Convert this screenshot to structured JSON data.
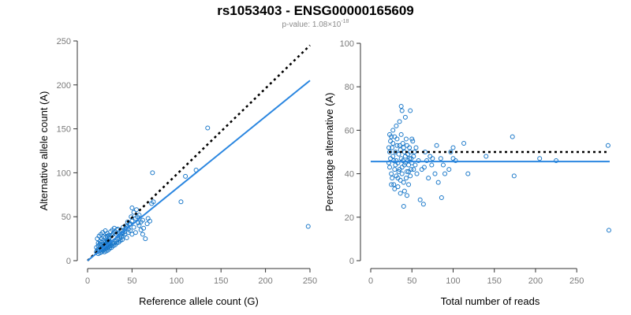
{
  "header": {
    "title": "rs1053403 - ENSG00000165609",
    "pvalue_prefix": "p-value: 1.08×10",
    "pvalue_exponent": "-18"
  },
  "colors": {
    "points": "#1a78c9",
    "fit_line": "#2a86e0",
    "reference_line": "#000000"
  },
  "chart_data": [
    {
      "type": "scatter",
      "title": "",
      "xlabel": "Reference allele count (G)",
      "ylabel": "Alternative allele count (A)",
      "xlim": [
        0,
        250
      ],
      "ylim": [
        0,
        250
      ],
      "xticks": [
        0,
        50,
        100,
        150,
        200,
        250
      ],
      "yticks": [
        0,
        50,
        100,
        150,
        200,
        250
      ],
      "points": [
        [
          10,
          10
        ],
        [
          11,
          12
        ],
        [
          12,
          13
        ],
        [
          13,
          11
        ],
        [
          14,
          15
        ],
        [
          15,
          12
        ],
        [
          16,
          17
        ],
        [
          17,
          14
        ],
        [
          18,
          19
        ],
        [
          19,
          16
        ],
        [
          20,
          21
        ],
        [
          21,
          18
        ],
        [
          22,
          23
        ],
        [
          23,
          20
        ],
        [
          24,
          25
        ],
        [
          25,
          22
        ],
        [
          12,
          20
        ],
        [
          14,
          22
        ],
        [
          16,
          25
        ],
        [
          18,
          27
        ],
        [
          11,
          25
        ],
        [
          13,
          28
        ],
        [
          15,
          30
        ],
        [
          17,
          32
        ],
        [
          20,
          34
        ],
        [
          22,
          31
        ],
        [
          24,
          29
        ],
        [
          26,
          33
        ],
        [
          28,
          35
        ],
        [
          30,
          37
        ],
        [
          32,
          30
        ],
        [
          34,
          36
        ],
        [
          36,
          32
        ],
        [
          38,
          34
        ],
        [
          40,
          38
        ],
        [
          42,
          33
        ],
        [
          44,
          40
        ],
        [
          46,
          36
        ],
        [
          48,
          42
        ],
        [
          50,
          45
        ],
        [
          52,
          38
        ],
        [
          54,
          48
        ],
        [
          56,
          50
        ],
        [
          58,
          52
        ],
        [
          60,
          44
        ],
        [
          62,
          46
        ],
        [
          12,
          8
        ],
        [
          14,
          9
        ],
        [
          16,
          10
        ],
        [
          18,
          12
        ],
        [
          20,
          13
        ],
        [
          22,
          14
        ],
        [
          24,
          16
        ],
        [
          26,
          17
        ],
        [
          28,
          19
        ],
        [
          30,
          20
        ],
        [
          32,
          22
        ],
        [
          34,
          24
        ],
        [
          36,
          25
        ],
        [
          38,
          27
        ],
        [
          40,
          28
        ],
        [
          42,
          30
        ],
        [
          44,
          26
        ],
        [
          46,
          32
        ],
        [
          48,
          34
        ],
        [
          50,
          30
        ],
        [
          10,
          15
        ],
        [
          12,
          17
        ],
        [
          14,
          19
        ],
        [
          16,
          21
        ],
        [
          18,
          23
        ],
        [
          20,
          26
        ],
        [
          22,
          28
        ],
        [
          25,
          27
        ],
        [
          27,
          29
        ],
        [
          29,
          31
        ],
        [
          31,
          33
        ],
        [
          33,
          35
        ],
        [
          35,
          30
        ],
        [
          37,
          29
        ],
        [
          39,
          31
        ],
        [
          41,
          35
        ],
        [
          43,
          37
        ],
        [
          45,
          39
        ],
        [
          47,
          41
        ],
        [
          19,
          10
        ],
        [
          21,
          11
        ],
        [
          23,
          12
        ],
        [
          25,
          14
        ],
        [
          27,
          15
        ],
        [
          29,
          17
        ],
        [
          31,
          18
        ],
        [
          33,
          20
        ],
        [
          35,
          21
        ],
        [
          37,
          23
        ],
        [
          39,
          24
        ],
        [
          20,
          15
        ],
        [
          21,
          16
        ],
        [
          22,
          17
        ],
        [
          23,
          18
        ],
        [
          24,
          19
        ],
        [
          25,
          20
        ],
        [
          18,
          14
        ],
        [
          17,
          13
        ],
        [
          19,
          18
        ],
        [
          20,
          19
        ],
        [
          21,
          20
        ],
        [
          22,
          21
        ],
        [
          23,
          22
        ],
        [
          24,
          23
        ],
        [
          16,
          15
        ],
        [
          15,
          14
        ],
        [
          55,
          58
        ],
        [
          50,
          60
        ],
        [
          58,
          40
        ],
        [
          60,
          35
        ],
        [
          62,
          30
        ],
        [
          65,
          25
        ],
        [
          70,
          45
        ],
        [
          72,
          65
        ],
        [
          68,
          48
        ],
        [
          52,
          55
        ],
        [
          54,
          32
        ],
        [
          49,
          50
        ],
        [
          57,
          43
        ],
        [
          63,
          37
        ],
        [
          67,
          42
        ],
        [
          45,
          44
        ],
        [
          74,
          67
        ],
        [
          73,
          100
        ],
        [
          105,
          67
        ],
        [
          110,
          96
        ],
        [
          122,
          103
        ],
        [
          135,
          151
        ],
        [
          248,
          39
        ]
      ],
      "fit_line": {
        "x": [
          0,
          250
        ],
        "y": [
          0,
          205
        ]
      },
      "reference_line": {
        "x": [
          0,
          250
        ],
        "y": [
          0,
          245
        ]
      }
    },
    {
      "type": "scatter",
      "title": "",
      "xlabel": "Total number of reads",
      "ylabel": "Percentage alternative (A)",
      "xlim": [
        0,
        290
      ],
      "ylim": [
        0,
        100
      ],
      "xticks": [
        0,
        50,
        100,
        150,
        200,
        250
      ],
      "yticks": [
        0,
        20,
        40,
        60,
        80,
        100
      ],
      "points": [
        [
          22,
          45
        ],
        [
          23,
          50
        ],
        [
          24,
          55
        ],
        [
          25,
          40
        ],
        [
          26,
          52
        ],
        [
          27,
          48
        ],
        [
          28,
          35
        ],
        [
          29,
          57
        ],
        [
          30,
          44
        ],
        [
          31,
          46
        ],
        [
          32,
          53
        ],
        [
          33,
          38
        ],
        [
          34,
          49
        ],
        [
          35,
          42
        ],
        [
          36,
          51
        ],
        [
          37,
          47
        ],
        [
          38,
          43
        ],
        [
          39,
          54
        ],
        [
          40,
          36
        ],
        [
          41,
          50
        ],
        [
          42,
          45
        ],
        [
          43,
          56
        ],
        [
          44,
          41
        ],
        [
          45,
          49
        ],
        [
          46,
          44
        ],
        [
          47,
          52
        ],
        [
          48,
          39
        ],
        [
          49,
          47
        ],
        [
          50,
          45
        ],
        [
          51,
          55
        ],
        [
          52,
          42
        ],
        [
          53,
          50
        ],
        [
          22,
          52
        ],
        [
          23,
          43
        ],
        [
          24,
          47
        ],
        [
          25,
          57
        ],
        [
          26,
          38
        ],
        [
          27,
          54
        ],
        [
          28,
          46
        ],
        [
          29,
          42
        ],
        [
          30,
          50
        ],
        [
          31,
          39
        ],
        [
          32,
          56
        ],
        [
          33,
          45
        ],
        [
          34,
          41
        ],
        [
          35,
          53
        ],
        [
          36,
          37
        ],
        [
          37,
          58
        ],
        [
          38,
          40
        ],
        [
          39,
          46
        ],
        [
          40,
          52
        ],
        [
          41,
          44
        ],
        [
          42,
          48
        ],
        [
          43,
          38
        ],
        [
          44,
          53
        ],
        [
          45,
          46
        ],
        [
          46,
          41
        ],
        [
          47,
          47
        ],
        [
          48,
          50
        ],
        [
          49,
          42
        ],
        [
          23,
          58
        ],
        [
          25,
          35
        ],
        [
          27,
          60
        ],
        [
          29,
          33
        ],
        [
          31,
          62
        ],
        [
          33,
          34
        ],
        [
          35,
          64
        ],
        [
          36,
          31
        ],
        [
          37,
          71
        ],
        [
          38,
          69
        ],
        [
          40,
          25
        ],
        [
          41,
          32
        ],
        [
          42,
          66
        ],
        [
          44,
          30
        ],
        [
          46,
          35
        ],
        [
          48,
          69
        ],
        [
          50,
          56
        ],
        [
          52,
          48
        ],
        [
          54,
          44
        ],
        [
          55,
          52
        ],
        [
          56,
          40
        ],
        [
          58,
          46
        ],
        [
          60,
          28
        ],
        [
          62,
          42
        ],
        [
          64,
          26
        ],
        [
          65,
          43
        ],
        [
          66,
          50
        ],
        [
          68,
          46
        ],
        [
          70,
          38
        ],
        [
          72,
          48
        ],
        [
          74,
          44
        ],
        [
          75,
          47
        ],
        [
          78,
          40
        ],
        [
          80,
          53
        ],
        [
          82,
          36
        ],
        [
          85,
          47
        ],
        [
          86,
          29
        ],
        [
          88,
          44
        ],
        [
          90,
          40
        ],
        [
          95,
          42
        ],
        [
          97,
          50
        ],
        [
          100,
          52
        ],
        [
          100,
          47
        ],
        [
          103,
          46
        ],
        [
          113,
          54
        ],
        [
          118,
          40
        ],
        [
          140,
          48
        ],
        [
          172,
          57
        ],
        [
          174,
          39
        ],
        [
          205,
          47
        ],
        [
          225,
          46
        ],
        [
          288,
          53
        ],
        [
          289,
          14
        ]
      ],
      "fit_line": {
        "x": [
          0,
          290
        ],
        "y": [
          45.6,
          45.6
        ]
      },
      "reference_line": {
        "x": [
          22,
          290
        ],
        "y": [
          50,
          50
        ]
      }
    }
  ]
}
